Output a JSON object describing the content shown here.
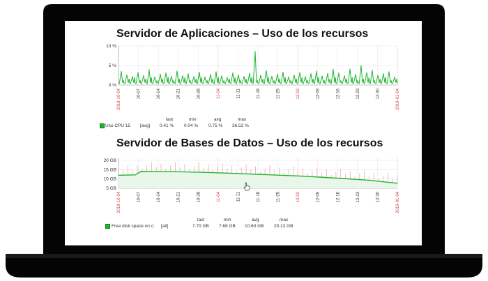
{
  "charts": [
    {
      "title": "Servidor de Aplicaciones – Uso de los recursos",
      "legend": {
        "name": "Uso CPU 15",
        "agg": "[avg]",
        "headers": [
          "last",
          "min",
          "avg",
          "max"
        ],
        "values": [
          "0.41 %",
          "0.04 %",
          "0.75 %",
          "36.52 %"
        ]
      }
    },
    {
      "title": "Servidor de Bases de Datos – Uso de los recursos",
      "legend": {
        "name": "Free disk space on c:",
        "agg": "[all]",
        "headers": [
          "last",
          "min",
          "avg",
          "max"
        ],
        "values": [
          "7.70 GB",
          "7.68 GB",
          "10.60 GB",
          "20.13 GB"
        ]
      }
    }
  ],
  "chart_data": [
    {
      "type": "line",
      "title": "Servidor de Aplicaciones – Uso de los recursos",
      "y_ticks": [
        "10 %",
        "5 %",
        "0 %"
      ],
      "ylim": [
        0,
        10
      ],
      "x_ticks": [
        {
          "label": "2018-10-04",
          "red": true
        },
        {
          "label": "10-07",
          "red": false
        },
        {
          "label": "10-14",
          "red": false
        },
        {
          "label": "10-21",
          "red": false
        },
        {
          "label": "10-28",
          "red": false
        },
        {
          "label": "11-04",
          "red": true
        },
        {
          "label": "11-11",
          "red": false
        },
        {
          "label": "11-18",
          "red": false
        },
        {
          "label": "11-25",
          "red": false
        },
        {
          "label": "12-02",
          "red": true
        },
        {
          "label": "12-09",
          "red": false
        },
        {
          "label": "12-16",
          "red": false
        },
        {
          "label": "12-23",
          "red": false
        },
        {
          "label": "12-30",
          "red": false
        },
        {
          "label": "2019-01-04",
          "red": true
        }
      ],
      "series": [
        {
          "name": "Uso CPU 15",
          "color": "#1db52f",
          "peaks": [
            3.5,
            2.6,
            2.1,
            3.2,
            2.4,
            3.9,
            2.0,
            2.8,
            3.1,
            2.2,
            3.6,
            2.4,
            2.9,
            2.1,
            3.3,
            2.0,
            2.7,
            3.4,
            2.3,
            1.9,
            3.1,
            2.6,
            2.2,
            3.0,
            8.6,
            2.5,
            3.7,
            2.2,
            2.8,
            3.3,
            2.0,
            2.6,
            3.2,
            2.1,
            2.9,
            3.5,
            2.3,
            3.0,
            4.0,
            3.1,
            2.4,
            4.1,
            2.7,
            5.0,
            3.2,
            3.8,
            2.5,
            2.9,
            3.4,
            2.0
          ]
        }
      ]
    },
    {
      "type": "area",
      "title": "Servidor de Bases de Datos – Uso de los recursos",
      "y_ticks": [
        "20 GB",
        "15 GB",
        "10 GB",
        "5 GB"
      ],
      "ylim": [
        5,
        21.5
      ],
      "x_ticks": [
        {
          "label": "2018-10-04",
          "red": true
        },
        {
          "label": "10-07",
          "red": false
        },
        {
          "label": "10-14",
          "red": false
        },
        {
          "label": "10-21",
          "red": false
        },
        {
          "label": "10-28",
          "red": false
        },
        {
          "label": "11-04",
          "red": true
        },
        {
          "label": "11-11",
          "red": false
        },
        {
          "label": "11-18",
          "red": false
        },
        {
          "label": "11-25",
          "red": false
        },
        {
          "label": "12-02",
          "red": true
        },
        {
          "label": "12-09",
          "red": false
        },
        {
          "label": "12-16",
          "red": false
        },
        {
          "label": "12-23",
          "red": false
        },
        {
          "label": "12-30",
          "red": false
        },
        {
          "label": "2019-01-04",
          "red": true
        }
      ],
      "series": [
        {
          "name": "Free disk space on c:",
          "color": "#1db52f",
          "points": [
            [
              0,
              12.0
            ],
            [
              0.06,
              12.2
            ],
            [
              0.08,
              14.0
            ],
            [
              0.2,
              13.9
            ],
            [
              0.3,
              13.6
            ],
            [
              0.4,
              13.1
            ],
            [
              0.5,
              12.5
            ],
            [
              0.58,
              12.0
            ],
            [
              0.65,
              11.6
            ],
            [
              0.72,
              11.0
            ],
            [
              0.8,
              10.3
            ],
            [
              0.9,
              9.3
            ],
            [
              1.0,
              7.7
            ]
          ]
        }
      ]
    }
  ]
}
